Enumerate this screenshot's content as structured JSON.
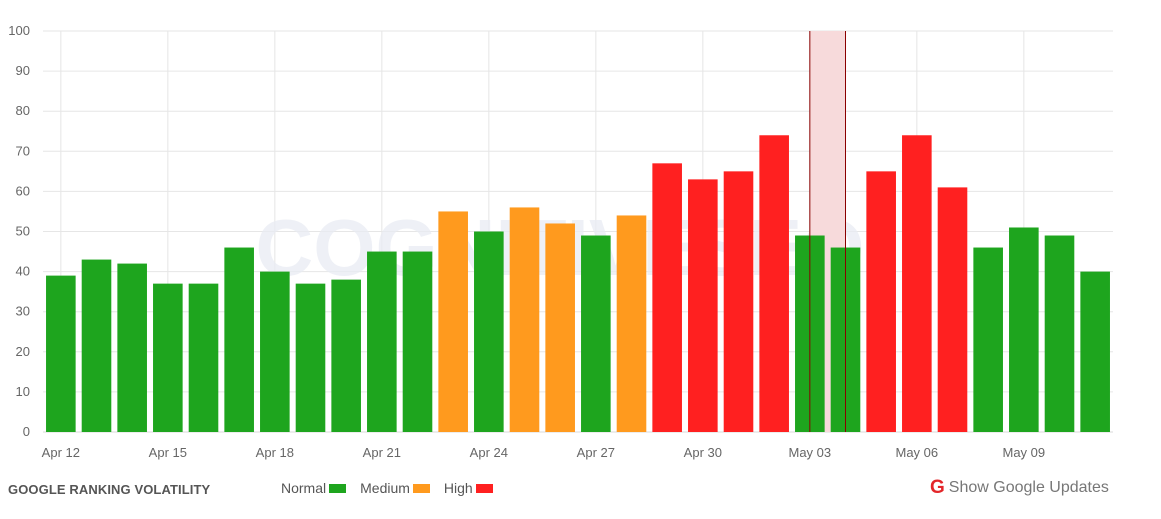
{
  "chart_data": {
    "type": "bar",
    "title": "GOOGLE RANKING VOLATILITY",
    "ylim": [
      0,
      100
    ],
    "yticks": [
      "0",
      "10",
      "20",
      "30",
      "40",
      "50",
      "60",
      "70",
      "80",
      "90",
      "100"
    ],
    "xtick_labels": [
      "Apr 12",
      "Apr 15",
      "Apr 18",
      "Apr 21",
      "Apr 24",
      "Apr 27",
      "Apr 30",
      "May 03",
      "May 06",
      "May 09"
    ],
    "xtick_index": [
      0,
      3,
      6,
      9,
      12,
      15,
      18,
      21,
      24,
      27
    ],
    "dates": [
      "Apr 12",
      "Apr 13",
      "Apr 14",
      "Apr 15",
      "Apr 16",
      "Apr 17",
      "Apr 18",
      "Apr 19",
      "Apr 20",
      "Apr 21",
      "Apr 22",
      "Apr 23",
      "Apr 24",
      "Apr 25",
      "Apr 26",
      "Apr 27",
      "Apr 28",
      "Apr 29",
      "Apr 30",
      "May 01",
      "May 02",
      "May 03",
      "May 04",
      "May 05",
      "May 06",
      "May 07",
      "May 08",
      "May 09",
      "May 10",
      "May 11"
    ],
    "values": [
      39,
      43,
      42,
      37,
      37,
      46,
      40,
      37,
      38,
      45,
      45,
      55,
      50,
      56,
      52,
      49,
      54,
      67,
      63,
      65,
      74,
      49,
      46,
      65,
      74,
      61,
      46,
      51,
      49,
      40
    ],
    "levels": [
      "normal",
      "normal",
      "normal",
      "normal",
      "normal",
      "normal",
      "normal",
      "normal",
      "normal",
      "normal",
      "normal",
      "medium",
      "normal",
      "medium",
      "medium",
      "normal",
      "medium",
      "high",
      "high",
      "high",
      "high",
      "normal",
      "normal",
      "high",
      "high",
      "high",
      "normal",
      "normal",
      "normal",
      "normal"
    ],
    "highlight_range": [
      "May 03",
      "May 04"
    ],
    "grid": true,
    "legend": "bottom"
  },
  "colors": {
    "normal": "#1ea51e",
    "medium": "#ff9a1e",
    "high": "#ff2020",
    "highlight": "#f7dadb",
    "highlight_edge": "#8b0000",
    "brand_red": "#e3262a"
  },
  "watermark": "COGNITIVESEO",
  "footer": {
    "title": "GOOGLE RANKING VOLATILITY",
    "legend": [
      {
        "label": "Normal",
        "color": "#1ea51e"
      },
      {
        "label": "Medium",
        "color": "#ff9a1e"
      },
      {
        "label": "High",
        "color": "#ff2020"
      }
    ],
    "updates_icon": "google-g-icon",
    "updates_label": "Show Google Updates"
  }
}
